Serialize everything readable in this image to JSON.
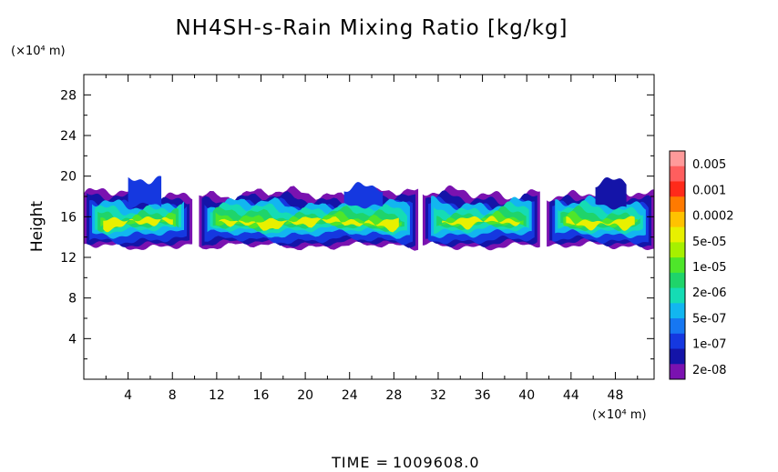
{
  "chart_data": {
    "type": "heatmap",
    "title": "NH4SH-s-Rain Mixing Ratio [kg/kg]",
    "ylabel": "Height",
    "xlabel": "",
    "y_unit": "(×10⁴ m)",
    "x_unit": "(×10⁴ m)",
    "xlim": [
      0,
      51.5
    ],
    "ylim": [
      0,
      30
    ],
    "x_ticks": [
      4,
      8,
      12,
      16,
      20,
      24,
      28,
      32,
      36,
      40,
      44,
      48
    ],
    "y_ticks": [
      4,
      8,
      12,
      16,
      20,
      24,
      28
    ],
    "colorbar": {
      "labels": [
        "0.005",
        "0.001",
        "0.0002",
        "5e-05",
        "1e-05",
        "2e-06",
        "5e-07",
        "1e-07",
        "2e-08"
      ],
      "colors": [
        "#ff9a9a",
        "#ff5e5e",
        "#ff2a1a",
        "#ff7a00",
        "#ffc200",
        "#e8f000",
        "#a6f000",
        "#4ee62a",
        "#1fd46a",
        "#15dcb4",
        "#12b6f0",
        "#1677f2",
        "#1538e0",
        "#1414a8",
        "#7a12b0"
      ]
    },
    "cloud_band": {
      "bottom_height": 13.5,
      "top_height": 19.5,
      "core_bottom": 14.5,
      "core_top": 17.0
    },
    "time_label": "TIME",
    "time_value": "1009608.0"
  }
}
